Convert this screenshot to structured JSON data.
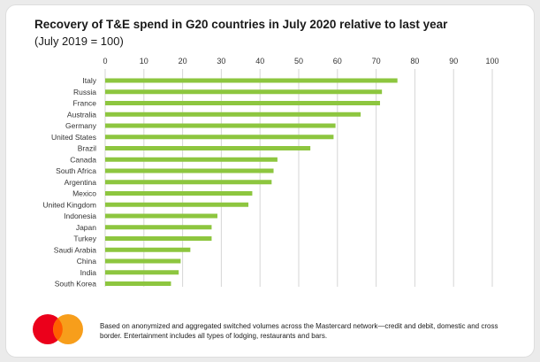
{
  "title": "Recovery of T&E spend in G20 countries in July 2020 relative to last year",
  "subtitle": "(July 2019 = 100)",
  "footnote": "Based on anonymized and aggregated switched volumes across the Mastercard network—credit and debit, domestic and cross border. Entertainment includes all types of lodging, restaurants and bars.",
  "colors": {
    "bar": "#8dc63f",
    "grid": "#d6d6d6",
    "logo_red": "#eb001b",
    "logo_orange": "#f79e1b",
    "logo_overlap": "#ff5f00"
  },
  "logo": {
    "icon": "mastercard-logo"
  },
  "chart_data": {
    "type": "bar",
    "orientation": "horizontal",
    "title": "Recovery of T&E spend in G20 countries in July 2020 relative to last year",
    "subtitle": "(July 2019 = 100)",
    "categories": [
      "Italy",
      "Russia",
      "France",
      "Australia",
      "Germany",
      "United States",
      "Brazil",
      "Canada",
      "South Africa",
      "Argentina",
      "Mexico",
      "United Kingdom",
      "Indonesia",
      "Japan",
      "Turkey",
      "Saudi Arabia",
      "China",
      "India",
      "South Korea"
    ],
    "values": [
      75.5,
      71.5,
      71,
      66,
      59.5,
      59,
      53,
      44.5,
      43.5,
      43,
      38,
      37,
      29,
      27.5,
      27.5,
      22,
      19.5,
      19,
      17
    ],
    "xlim": [
      0,
      100
    ],
    "xticks": [
      0,
      10,
      20,
      30,
      40,
      50,
      60,
      70,
      80,
      90,
      100
    ],
    "grid": true,
    "xaxis_position": "top"
  }
}
